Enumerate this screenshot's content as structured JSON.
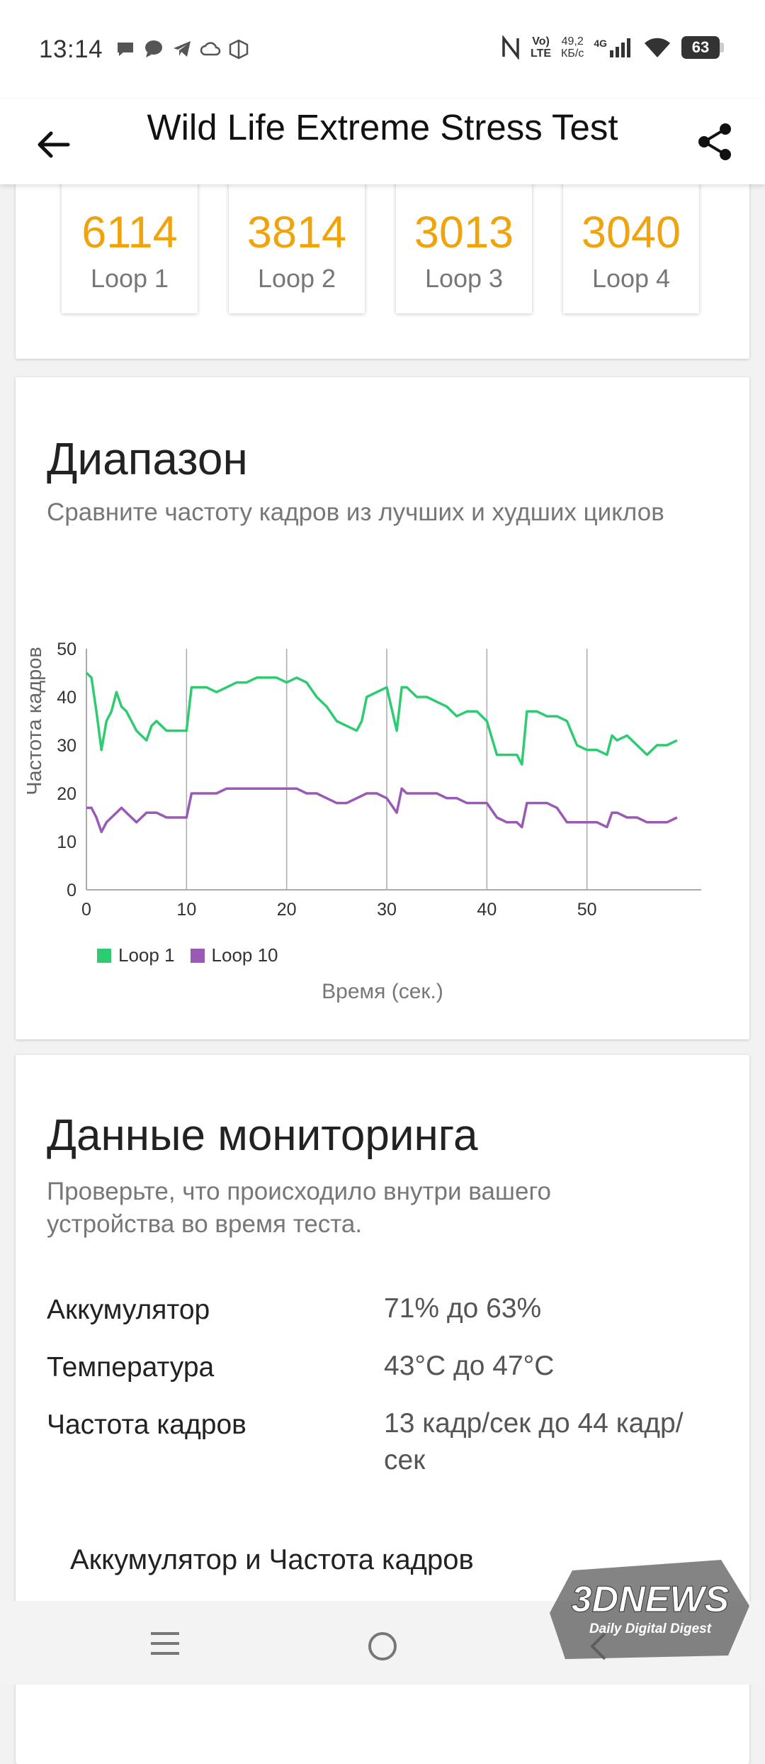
{
  "status_bar": {
    "time": "13:14",
    "net_speed_value": "49,2",
    "net_speed_unit": "КБ/с",
    "volte_top": "Vo)",
    "volte_bottom": "LTE",
    "network_gen": "4G",
    "battery_level": "63"
  },
  "app_bar": {
    "title": "Wild Life Extreme Stress Test"
  },
  "loops": [
    {
      "value": "6114",
      "label": "Loop 1"
    },
    {
      "value": "3814",
      "label": "Loop 2"
    },
    {
      "value": "3013",
      "label": "Loop 3"
    },
    {
      "value": "3040",
      "label": "Loop 4"
    }
  ],
  "range_section": {
    "title": "Диапазон",
    "description": "Сравните частоту кадров из лучших и худших циклов"
  },
  "chart_data": {
    "type": "line",
    "ylabel": "Частота кадров",
    "xlabel": "Время (сек.)",
    "xlim": [
      0,
      60
    ],
    "ylim": [
      0,
      50
    ],
    "x_ticks": [
      "0",
      "10",
      "20",
      "30",
      "40",
      "50"
    ],
    "y_ticks": [
      "0",
      "10",
      "20",
      "30",
      "40",
      "50"
    ],
    "grid": "vertical",
    "legend_position": "bottom-left",
    "series": [
      {
        "name": "Loop 1",
        "color": "#2ecc71",
        "x": [
          0,
          0.5,
          1,
          1.5,
          2,
          2.5,
          3,
          3.5,
          4,
          5,
          6,
          6.5,
          7,
          7.5,
          8,
          9,
          10,
          10.5,
          11,
          12,
          13,
          14,
          15,
          16,
          17,
          18,
          19,
          20,
          21,
          22,
          23,
          24,
          25,
          26,
          27,
          27.5,
          28,
          29,
          30,
          31,
          31.5,
          32,
          33,
          34,
          35,
          36,
          37,
          38,
          39,
          40,
          41,
          42,
          43,
          43.5,
          44,
          45,
          46,
          47,
          48,
          49,
          50,
          51,
          52,
          52.5,
          53,
          54,
          55,
          56,
          57,
          58,
          59
        ],
        "values": [
          45,
          44,
          37,
          29,
          35,
          37,
          41,
          38,
          37,
          33,
          31,
          34,
          35,
          34,
          33,
          33,
          33,
          42,
          42,
          42,
          41,
          42,
          43,
          43,
          44,
          44,
          44,
          43,
          44,
          43,
          40,
          38,
          35,
          34,
          33,
          35,
          40,
          41,
          42,
          33,
          42,
          42,
          40,
          40,
          39,
          38,
          36,
          37,
          37,
          35,
          28,
          28,
          28,
          26,
          37,
          37,
          36,
          36,
          35,
          30,
          29,
          29,
          28,
          32,
          31,
          32,
          30,
          28,
          30,
          30,
          31
        ]
      },
      {
        "name": "Loop 10",
        "color": "#9b59b6",
        "x": [
          0,
          0.5,
          1,
          1.5,
          2,
          3,
          3.5,
          4,
          5,
          6,
          7,
          8,
          9,
          10,
          10.5,
          11,
          12,
          13,
          14,
          15,
          16,
          17,
          18,
          19,
          20,
          21,
          22,
          23,
          24,
          25,
          26,
          27,
          28,
          29,
          30,
          31,
          31.5,
          32,
          33,
          34,
          35,
          36,
          37,
          38,
          39,
          40,
          41,
          42,
          43,
          43.5,
          44,
          45,
          46,
          47,
          48,
          49,
          50,
          51,
          52,
          52.5,
          53,
          54,
          55,
          56,
          57,
          58,
          59
        ],
        "values": [
          17,
          17,
          15,
          12,
          14,
          16,
          17,
          16,
          14,
          16,
          16,
          15,
          15,
          15,
          20,
          20,
          20,
          20,
          21,
          21,
          21,
          21,
          21,
          21,
          21,
          21,
          20,
          20,
          19,
          18,
          18,
          19,
          20,
          20,
          19,
          16,
          21,
          20,
          20,
          20,
          20,
          19,
          19,
          18,
          18,
          18,
          15,
          14,
          14,
          13,
          18,
          18,
          18,
          17,
          14,
          14,
          14,
          14,
          13,
          16,
          16,
          15,
          15,
          14,
          14,
          14,
          15
        ]
      }
    ]
  },
  "monitoring_section": {
    "title": "Данные мониторинга",
    "description": "Проверьте, что происходило внутри вашего устройства во время теста.",
    "rows": [
      {
        "label": "Аккумулятор",
        "value": "71% до 63%"
      },
      {
        "label": "Температура",
        "value": "43°C до 47°C"
      },
      {
        "label": "Частота кадров",
        "value": "13 кадр/сек до 44 кадр/сек"
      }
    ],
    "sub_heading": "Аккумулятор и Частота кадров"
  },
  "watermark": {
    "brand": "3DNEWS",
    "tagline": "Daily Digital Digest"
  },
  "colors": {
    "score_orange": "#f0a30a",
    "loop1_green": "#2ecc71",
    "loop10_purple": "#9b59b6"
  }
}
